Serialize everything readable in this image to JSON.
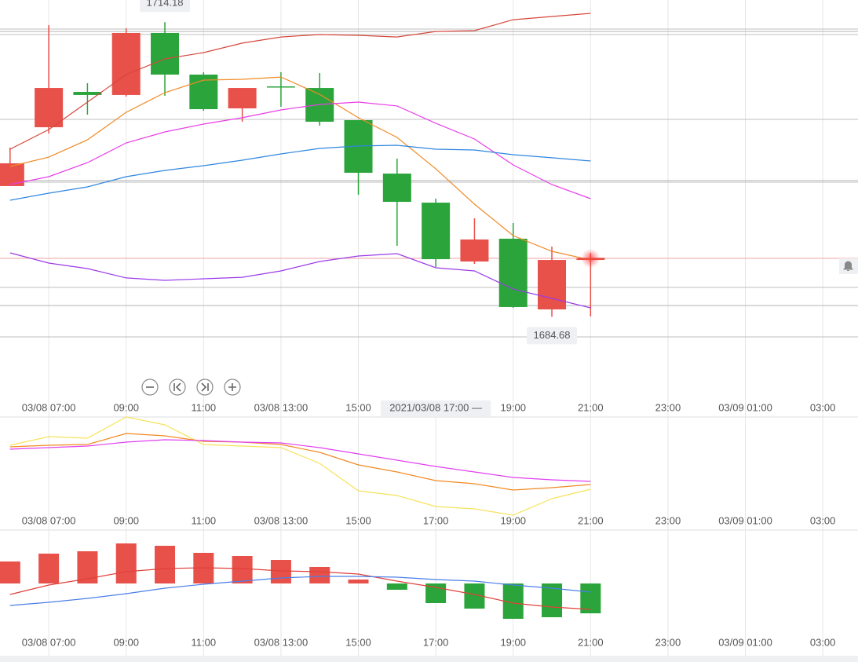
{
  "chart_data": [
    {
      "type": "candlestick",
      "x": [
        6,
        7,
        8,
        9,
        10,
        11,
        12,
        13,
        14,
        15,
        16,
        17,
        18,
        19,
        20,
        21
      ],
      "open": [
        1697.77,
        1703.66,
        1707.2,
        1706.89,
        1713.1,
        1708.93,
        1705.55,
        1707.75,
        1707.59,
        1704.37,
        1699.02,
        1696.11,
        1690.22,
        1692.5,
        1685.42,
        1690.37
      ],
      "high": [
        1701.62,
        1713.88,
        1708.07,
        1713.57,
        1714.18,
        1709.17,
        1707.59,
        1709.17,
        1709.09,
        1704.37,
        1700.52,
        1696.51,
        1694.54,
        1694.07,
        1691.71,
        1691.08
      ],
      "low": [
        1697.77,
        1703.03,
        1704.92,
        1706.73,
        1706.81,
        1705.31,
        1704.21,
        1705.71,
        1703.82,
        1696.9,
        1691.79,
        1689.67,
        1689.98,
        1685.58,
        1684.68,
        1684.72
      ],
      "close": [
        1700.05,
        1707.59,
        1706.89,
        1713.1,
        1708.93,
        1705.47,
        1707.59,
        1707.67,
        1704.21,
        1699.1,
        1696.19,
        1690.45,
        1692.42,
        1685.66,
        1690.37,
        1690.53
      ],
      "up_color": "#e8504a",
      "down_color": "#2ba53b",
      "series": [
        {
          "color": "#d6473c",
          "values": [
            1701.46,
            1703.43,
            1706.18,
            1708.93,
            1710.5,
            1711.13,
            1712.08,
            1712.7,
            1712.94,
            1712.86,
            1712.7,
            1713.25,
            1713.33,
            1714.43,
            1714.75,
            1715.06
          ]
        },
        {
          "color": "#f08a24",
          "values": [
            1699.73,
            1700.67,
            1702.4,
            1705.16,
            1707.12,
            1708.38,
            1708.46,
            1708.69,
            1706.96,
            1704.61,
            1702.64,
            1699.5,
            1695.96,
            1692.81,
            1691.24,
            1690.37
          ]
        },
        {
          "color": "#e83ee8",
          "values": [
            1697.92,
            1698.71,
            1700.12,
            1702.09,
            1703.19,
            1703.98,
            1704.61,
            1705.39,
            1705.94,
            1706.18,
            1705.79,
            1704.06,
            1702.48,
            1699.89,
            1697.92,
            1696.51
          ]
        },
        {
          "color": "#2f86e0",
          "values": [
            1696.35,
            1697.06,
            1697.69,
            1698.71,
            1699.34,
            1699.81,
            1700.36,
            1700.99,
            1701.54,
            1701.78,
            1701.85,
            1701.46,
            1701.38,
            1700.91,
            1700.6,
            1700.28
          ]
        },
        {
          "color": "#9b3be8",
          "values": [
            1691.08,
            1690.06,
            1689.51,
            1688.57,
            1688.33,
            1688.49,
            1688.64,
            1689.27,
            1690.22,
            1690.77,
            1691.0,
            1689.59,
            1689.27,
            1687.46,
            1686.52,
            1685.58
          ]
        }
      ],
      "levels": [
        1713.49,
        1713.25,
        1712.94,
        1704.45,
        1698.32,
        1698.16,
        1687.62,
        1685.81,
        1682.67
      ],
      "last": 1690.53,
      "max_label": {
        "x": 10,
        "value": 1714.18
      },
      "min_label": {
        "x": 20,
        "value": 1684.68
      },
      "crosshair": {
        "x": 17,
        "label": "2021/03/08 17:00 —"
      },
      "xlim": [
        5.74,
        27.91
      ],
      "ylim": [
        1676.3,
        1716.4
      ],
      "xticks": [
        {
          "value": 7,
          "label": "03/08 07:00"
        },
        {
          "value": 9,
          "label": "09:00"
        },
        {
          "value": 11,
          "label": "11:00"
        },
        {
          "value": 13,
          "label": "03/08 13:00"
        },
        {
          "value": 15,
          "label": "15:00"
        },
        {
          "value": 19,
          "label": "19:00"
        },
        {
          "value": 21,
          "label": "21:00"
        },
        {
          "value": 23,
          "label": "23:00"
        },
        {
          "value": 25,
          "label": "03/09 01:00"
        },
        {
          "value": 27,
          "label": "03:00"
        }
      ],
      "grid": true
    },
    {
      "type": "line",
      "x": [
        6,
        7,
        8,
        9,
        10,
        11,
        12,
        13,
        14,
        15,
        16,
        17,
        18,
        19,
        20,
        21
      ],
      "series": [
        {
          "color": "#f6e35a",
          "values": [
            72,
            80.8,
            79.2,
            100.8,
            92.8,
            72.8,
            71.2,
            69.6,
            53.6,
            25.6,
            20.8,
            9.6,
            7.2,
            0.8,
            17.6,
            27.2
          ]
        },
        {
          "color": "#f08a24",
          "values": [
            70.4,
            72,
            72.8,
            84,
            81.6,
            76,
            75.2,
            72.8,
            64.8,
            52,
            44.8,
            36,
            32.8,
            26.4,
            28.8,
            32
          ]
        },
        {
          "color": "#e040f0",
          "values": [
            68,
            69.6,
            71.2,
            75.2,
            77.6,
            76.8,
            75.2,
            74.4,
            69.6,
            63.2,
            56.8,
            50.4,
            44.8,
            39.2,
            36.8,
            35.2
          ]
        }
      ],
      "xlim": [
        5.74,
        27.91
      ],
      "ylim": [
        0,
        100
      ],
      "xticks": [
        {
          "value": 7,
          "label": "03/08 07:00"
        },
        {
          "value": 9,
          "label": "09:00"
        },
        {
          "value": 11,
          "label": "11:00"
        },
        {
          "value": 13,
          "label": "03/08 13:00"
        },
        {
          "value": 15,
          "label": "15:00"
        },
        {
          "value": 17,
          "label": "17:00"
        },
        {
          "value": 19,
          "label": "19:00"
        },
        {
          "value": 21,
          "label": "21:00"
        },
        {
          "value": 23,
          "label": "23:00"
        },
        {
          "value": 25,
          "label": "03/09 01:00"
        },
        {
          "value": 27,
          "label": "03:00"
        }
      ],
      "grid": true
    },
    {
      "type": "bar",
      "x": [
        6,
        7,
        8,
        9,
        10,
        11,
        12,
        13,
        14,
        15,
        16,
        17,
        18,
        19,
        20,
        21
      ],
      "values": [
        2.8,
        3.8,
        4.1,
        5.1,
        4.8,
        3.9,
        3.5,
        3.0,
        2.1,
        0.5,
        -0.8,
        -2.5,
        -3.2,
        -4.5,
        -4.3,
        -3.8
      ],
      "up_color": "#e8504a",
      "down_color": "#2ba53b",
      "series": [
        {
          "color": "#e0413a",
          "values": [
            -1.4,
            -0.2,
            0.6,
            1.5,
            1.9,
            2.0,
            1.9,
            1.6,
            1.5,
            1.2,
            0.3,
            -0.5,
            -1.4,
            -2.5,
            -3.0,
            -3.3
          ]
        },
        {
          "color": "#4a7ee8",
          "values": [
            -2.8,
            -2.4,
            -1.9,
            -1.3,
            -0.6,
            -0.1,
            0.3,
            0.7,
            0.9,
            0.9,
            0.8,
            0.5,
            0.3,
            -0.2,
            -0.6,
            -1.1
          ]
        }
      ],
      "xlim": [
        5.74,
        27.91
      ],
      "ylim": [
        -5.7,
        6.3
      ],
      "xticks": [
        {
          "value": 7,
          "label": "03/08 07:00"
        },
        {
          "value": 9,
          "label": "09:00"
        },
        {
          "value": 11,
          "label": "11:00"
        },
        {
          "value": 13,
          "label": "03/08 13:00"
        },
        {
          "value": 15,
          "label": "15:00"
        },
        {
          "value": 17,
          "label": "17:00"
        },
        {
          "value": 19,
          "label": "19:00"
        },
        {
          "value": 21,
          "label": "21:00"
        },
        {
          "value": 23,
          "label": "23:00"
        },
        {
          "value": 25,
          "label": "03/09 01:00"
        },
        {
          "value": 27,
          "label": "03:00"
        }
      ],
      "grid": true
    }
  ]
}
